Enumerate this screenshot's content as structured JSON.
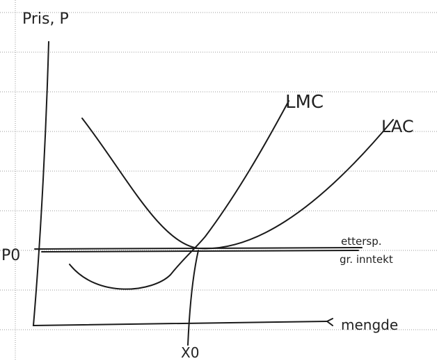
{
  "axis_labels": {
    "y": "Pris, P",
    "x": "mengde"
  },
  "curves": {
    "lmc": "LMC",
    "lac": "LAC",
    "demand": "ettersp.",
    "marginal_revenue": "gr. inntekt"
  },
  "markers": {
    "price": "P0",
    "quantity": "X0"
  }
}
